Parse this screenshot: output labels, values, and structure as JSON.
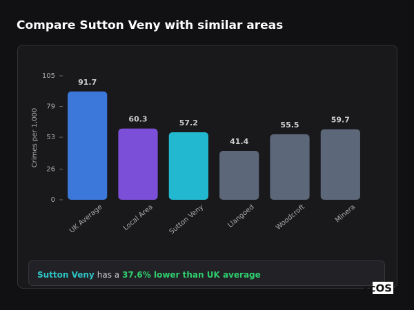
{
  "header": {
    "title": "Compare Sutton Veny with similar areas"
  },
  "chart_data": {
    "type": "bar",
    "y_label": "Crimes per 1,000",
    "categories": [
      "UK Average",
      "Local Area",
      "Sutton Veny",
      "Llangoed",
      "Woodcroft",
      "Minera"
    ],
    "values": [
      91.7,
      60.3,
      57.2,
      41.4,
      55.5,
      59.7
    ],
    "colors": [
      "#3b78d9",
      "#7c4fd8",
      "#22b9d0",
      "#5c6779",
      "#5c6779",
      "#5c6779"
    ],
    "ylim": [
      0,
      105
    ],
    "yticks": [
      0,
      26,
      53,
      79,
      105
    ],
    "grid": false
  },
  "footer": {
    "area": "Sutton Veny",
    "text": "has a",
    "highlight": "37.6% lower than UK average"
  },
  "logo": "scOS"
}
